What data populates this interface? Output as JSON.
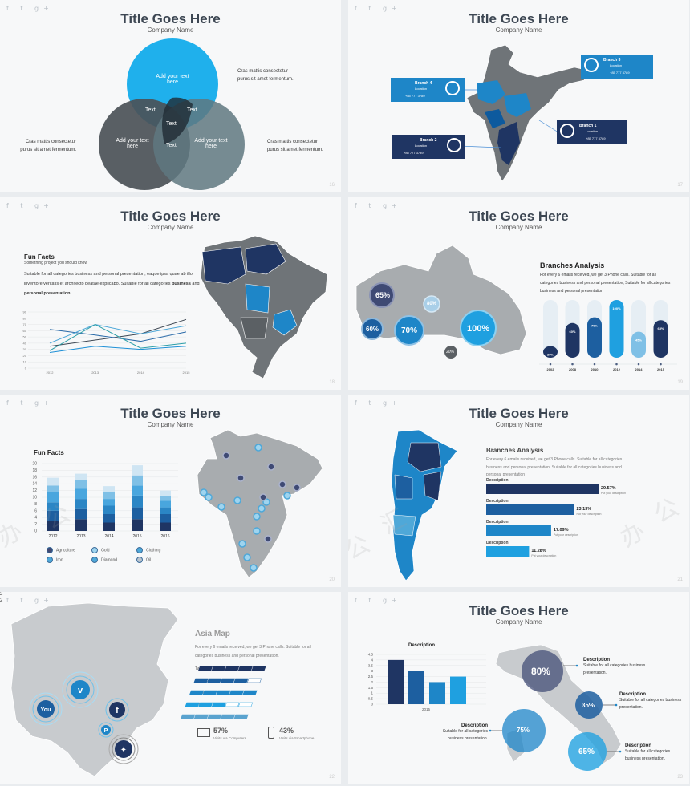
{
  "common": {
    "title_a": "Title Goes",
    "title_b": "Here",
    "company": "Company Name",
    "social": "f  t  g+"
  },
  "s1": {
    "add_text": "Add your text here",
    "center_labels": [
      "Text",
      "Text",
      "Text",
      "Text"
    ],
    "note": "Cras mattis consectetur purus sit amet fermentum.",
    "page": "16"
  },
  "s2": {
    "branches": [
      {
        "name": "Branch 4",
        "loc": "Location",
        "phone": "+85 777 3789"
      },
      {
        "name": "Branch 3",
        "loc": "Location",
        "phone": "+85 777 3789"
      },
      {
        "name": "Branch 2",
        "loc": "Location",
        "phone": "+85 777 3789"
      },
      {
        "name": "Branch 1",
        "loc": "Location",
        "phone": "+85 777 3789"
      }
    ],
    "page": "17"
  },
  "s3": {
    "heading": "Fun Facts",
    "sub": "Something project  you should know",
    "body": "Suitable for all categories business and personal presentation, eaque ipsa quae ab illo inventore veritatis et architecto beatae explicabo. Suitable for all categories",
    "bold1": "business",
    "and": " and ",
    "bold2": "personal presentation.",
    "page": "18"
  },
  "s4": {
    "heading": "Branches Analysis",
    "body": "For every 6 emails received, we get 3 Phone calls. Suitable for all categories business and personal presentation, Suitable for all categories business and personal presentation",
    "map_pcts": [
      "65%",
      "80%",
      "60%",
      "70%",
      "100%",
      "20%"
    ],
    "page": "19"
  },
  "s5": {
    "heading": "Fun Facts",
    "legend": [
      "Agriculture",
      "Gold",
      "Clothing",
      "Iron",
      "Diamond",
      "Oil"
    ],
    "page": "20"
  },
  "s6": {
    "heading": "Branches Analysis",
    "body": "For every 6 emails received, we get 3 Phone calls. Suitable for all categories business and personal presentation, Suitable for all categories business and personal presentation",
    "desc_label": "Description",
    "put_desc": "Put your description",
    "page": "21"
  },
  "s7": {
    "heading": "Asia Map",
    "body": "For every 6 emails received, we get 3 Phone calls. Suitable for all categories business and personal presentation.",
    "platforms": [
      "Twitter",
      "Facebook",
      "Youtube",
      "Pinterest",
      "Vimeo"
    ],
    "pct_computers": "57%",
    "lbl_computers": "Visits via Computers",
    "pct_smartphone": "43%",
    "lbl_smartphone": "Visits via Smartphone",
    "edge_numbers": [
      "2",
      "2"
    ],
    "page": "22"
  },
  "s8": {
    "chart_title": "Description",
    "desc": "Description",
    "desc_body": "Suitable for all categories business presentation.",
    "pcts": [
      "80%",
      "35%",
      "75%",
      "65%"
    ],
    "page": "23"
  },
  "chart_data": [
    {
      "type": "line",
      "x": [
        "2012",
        "2013",
        "2014",
        "2015"
      ],
      "ylim": [
        0,
        90
      ],
      "yticks": [
        0,
        10,
        20,
        30,
        40,
        50,
        60,
        70,
        80,
        90
      ],
      "series": [
        {
          "values": [
            35,
            45,
            55,
            78
          ],
          "color": "#3d4753"
        },
        {
          "values": [
            62,
            53,
            43,
            58
          ],
          "color": "#2a6aa8"
        },
        {
          "values": [
            40,
            70,
            55,
            68
          ],
          "color": "#4fa8d8"
        },
        {
          "values": [
            28,
            70,
            32,
            40
          ],
          "color": "#2b9ea8"
        },
        {
          "values": [
            25,
            35,
            30,
            35
          ],
          "color": "#1c8fd6"
        }
      ]
    },
    {
      "type": "bar",
      "categories": [
        "2012",
        "2013",
        "2014",
        "2015",
        "2016"
      ],
      "ylim": [
        0,
        20
      ],
      "yticks": [
        0,
        2,
        4,
        6,
        8,
        10,
        12,
        14,
        16,
        18,
        20
      ],
      "stacks": [
        [
          3,
          3,
          2.5,
          3,
          2,
          2.3
        ],
        [
          3.5,
          3,
          3,
          3,
          2.5,
          2
        ],
        [
          2.5,
          2.5,
          2.5,
          2,
          2,
          1.8
        ],
        [
          3.5,
          3.5,
          3.5,
          3,
          3,
          3
        ],
        [
          2.5,
          2.5,
          2,
          2,
          1.5,
          1.5
        ]
      ],
      "colors": [
        "#1f3563",
        "#1d5fa0",
        "#2b86c5",
        "#49a6de",
        "#7fc0e6",
        "#cfe5f3"
      ]
    },
    {
      "type": "bar",
      "categories": [
        "2002",
        "2008",
        "2010",
        "2012",
        "2014",
        "2015"
      ],
      "values": [
        20,
        60,
        70,
        100,
        45,
        65
      ],
      "labels": [
        "20%",
        "60%",
        "70%",
        "100%",
        "45%",
        "65%"
      ],
      "ylim": [
        0,
        100
      ]
    },
    {
      "type": "bar",
      "orientation": "horizontal",
      "categories": [
        "Description",
        "Description",
        "Description",
        "Description"
      ],
      "values": [
        29.57,
        23.13,
        17.09,
        11.28
      ],
      "labels": [
        "29.57%",
        "23.13%",
        "17.09%",
        "11.28%"
      ]
    },
    {
      "type": "bar",
      "orientation": "horizontal",
      "categories": [
        "Twitter",
        "Facebook",
        "Youtube",
        "Pinterest",
        "Vimeo"
      ],
      "values": [
        100,
        80,
        100,
        60,
        100
      ],
      "xlim": [
        0,
        100
      ]
    },
    {
      "type": "bar",
      "categories": [
        "2015"
      ],
      "series_values": [
        4.0,
        3.0,
        2.0,
        2.5
      ],
      "ylim": [
        0,
        4.5
      ],
      "yticks": [
        0,
        0.5,
        1,
        1.5,
        2,
        2.5,
        3,
        3.5,
        4,
        4.5
      ],
      "title": "Description"
    }
  ]
}
